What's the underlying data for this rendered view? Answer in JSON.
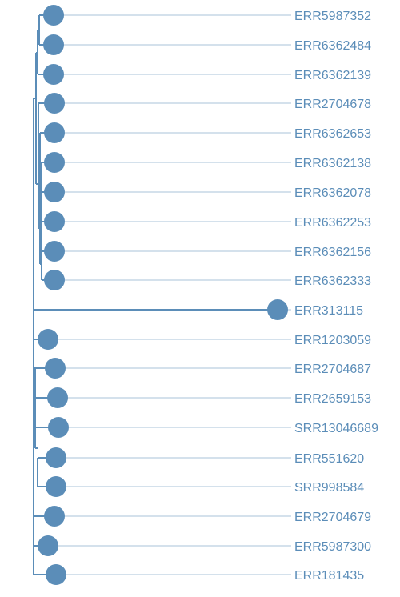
{
  "tree": {
    "colors": {
      "branch": "#5b8db8",
      "node": "#5b8db8",
      "label": "#5b8db8",
      "guide": "#a9c3d8"
    },
    "leaves": [
      "ERR5987352",
      "ERR6362484",
      "ERR6362139",
      "ERR2704678",
      "ERR6362653",
      "ERR6362138",
      "ERR6362078",
      "ERR6362253",
      "ERR6362156",
      "ERR6362333",
      "ERR313115",
      "ERR1203059",
      "ERR2704687",
      "ERR2659153",
      "SRR13046689",
      "ERR551620",
      "SRR998584",
      "ERR2704679",
      "ERR5987300",
      "ERR181435"
    ]
  }
}
